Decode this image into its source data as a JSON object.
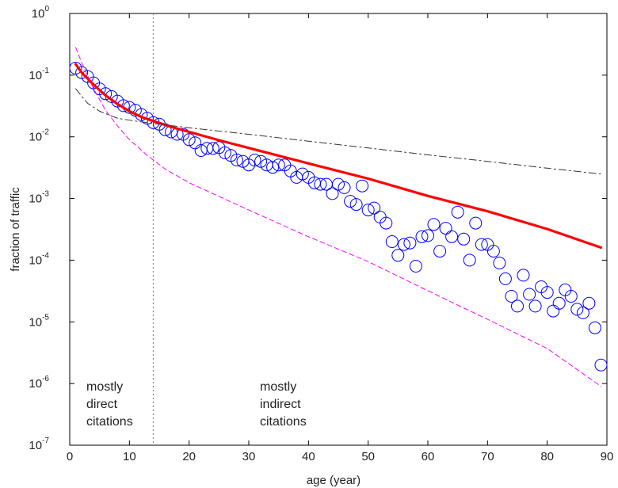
{
  "chart_data": {
    "type": "scatter",
    "title": "",
    "xlabel": "age (year)",
    "ylabel": "fraction of traffic",
    "xlim": [
      0,
      90
    ],
    "ylim": [
      1e-07,
      1
    ],
    "yscale": "log",
    "x_ticks": [
      "0",
      "10",
      "20",
      "30",
      "40",
      "50",
      "60",
      "70",
      "80",
      "90"
    ],
    "y_ticks": [
      {
        "base": "10",
        "exp": "0"
      },
      {
        "base": "10",
        "exp": "-1"
      },
      {
        "base": "10",
        "exp": "-2"
      },
      {
        "base": "10",
        "exp": "-3"
      },
      {
        "base": "10",
        "exp": "-4"
      },
      {
        "base": "10",
        "exp": "-5"
      },
      {
        "base": "10",
        "exp": "-6"
      },
      {
        "base": "10",
        "exp": "-7"
      }
    ],
    "grid": false,
    "legend": "none",
    "reference_line_x": 14,
    "annotations": [
      {
        "lines": [
          "mostly",
          "direct",
          "citations"
        ]
      },
      {
        "lines": [
          "mostly",
          "indirect",
          "citations"
        ]
      }
    ],
    "series": [
      {
        "style": "circles",
        "color": "#0000ff",
        "points": [
          [
            1,
            0.13
          ],
          [
            2,
            0.11
          ],
          [
            3,
            0.095
          ],
          [
            4,
            0.075
          ],
          [
            5,
            0.06
          ],
          [
            6,
            0.05
          ],
          [
            7,
            0.045
          ],
          [
            8,
            0.038
          ],
          [
            9,
            0.032
          ],
          [
            10,
            0.03
          ],
          [
            11,
            0.027
          ],
          [
            12,
            0.023
          ],
          [
            13,
            0.02
          ],
          [
            14,
            0.017
          ],
          [
            15,
            0.016
          ],
          [
            16,
            0.013
          ],
          [
            17,
            0.012
          ],
          [
            18,
            0.011
          ],
          [
            19,
            0.011
          ],
          [
            20,
            0.009
          ],
          [
            21,
            0.008
          ],
          [
            22,
            0.006
          ],
          [
            23,
            0.0065
          ],
          [
            24,
            0.0065
          ],
          [
            25,
            0.0067
          ],
          [
            26,
            0.0055
          ],
          [
            27,
            0.005
          ],
          [
            28,
            0.0042
          ],
          [
            29,
            0.004
          ],
          [
            30,
            0.0035
          ],
          [
            31,
            0.0042
          ],
          [
            32,
            0.004
          ],
          [
            33,
            0.0035
          ],
          [
            34,
            0.0032
          ],
          [
            35,
            0.0035
          ],
          [
            36,
            0.0035
          ],
          [
            37,
            0.0028
          ],
          [
            38,
            0.0022
          ],
          [
            39,
            0.0025
          ],
          [
            40,
            0.0022
          ],
          [
            41,
            0.0018
          ],
          [
            42,
            0.0017
          ],
          [
            43,
            0.0017
          ],
          [
            44,
            0.0012
          ],
          [
            45,
            0.0017
          ],
          [
            46,
            0.0015
          ],
          [
            47,
            0.0009
          ],
          [
            48,
            0.0008
          ],
          [
            49,
            0.0016
          ],
          [
            50,
            0.00065
          ],
          [
            51,
            0.0007
          ],
          [
            52,
            0.0005
          ],
          [
            53,
            0.0004
          ],
          [
            54,
            0.0002
          ],
          [
            55,
            0.00012
          ],
          [
            56,
            0.00018
          ],
          [
            57,
            0.00019
          ],
          [
            58,
            8e-05
          ],
          [
            59,
            0.00024
          ],
          [
            60,
            0.00025
          ],
          [
            61,
            0.00038
          ],
          [
            62,
            0.00014
          ],
          [
            63,
            0.00033
          ],
          [
            64,
            0.00024
          ],
          [
            65,
            0.0006
          ],
          [
            66,
            0.00022
          ],
          [
            67,
            0.0001
          ],
          [
            68,
            0.0004
          ],
          [
            69,
            0.00018
          ],
          [
            70,
            0.00018
          ],
          [
            71,
            0.00014
          ],
          [
            72,
            9e-05
          ],
          [
            73,
            5e-05
          ],
          [
            74,
            2.6e-05
          ],
          [
            75,
            1.8e-05
          ],
          [
            76,
            5.7e-05
          ],
          [
            77,
            2.8e-05
          ],
          [
            78,
            1.8e-05
          ],
          [
            79,
            3.7e-05
          ],
          [
            80,
            3e-05
          ],
          [
            81,
            1.5e-05
          ],
          [
            82,
            2e-05
          ],
          [
            83,
            3.3e-05
          ],
          [
            84,
            2.6e-05
          ],
          [
            85,
            1.6e-05
          ],
          [
            86,
            1.4e-05
          ],
          [
            87,
            2e-05
          ],
          [
            88,
            8e-06
          ],
          [
            89,
            2e-06
          ]
        ]
      },
      {
        "style": "solid",
        "color": "#ff0000",
        "points": [
          [
            1,
            0.15
          ],
          [
            2,
            0.11
          ],
          [
            4,
            0.07
          ],
          [
            6,
            0.047
          ],
          [
            8,
            0.034
          ],
          [
            10,
            0.026
          ],
          [
            12,
            0.021
          ],
          [
            14,
            0.018
          ],
          [
            17,
            0.0145
          ],
          [
            20,
            0.012
          ],
          [
            25,
            0.0088
          ],
          [
            30,
            0.0066
          ],
          [
            40,
            0.0037
          ],
          [
            50,
            0.0021
          ],
          [
            60,
            0.0011
          ],
          [
            70,
            0.00062
          ],
          [
            80,
            0.00032
          ],
          [
            89,
            0.00016
          ]
        ]
      },
      {
        "style": "dashdot",
        "color": "#333333",
        "points": [
          [
            1,
            0.06
          ],
          [
            3,
            0.035
          ],
          [
            5,
            0.026
          ],
          [
            8,
            0.02
          ],
          [
            11,
            0.018
          ],
          [
            14,
            0.0165
          ],
          [
            20,
            0.014
          ],
          [
            30,
            0.011
          ],
          [
            40,
            0.0085
          ],
          [
            50,
            0.0066
          ],
          [
            60,
            0.0051
          ],
          [
            70,
            0.004
          ],
          [
            80,
            0.0031
          ],
          [
            89,
            0.0025
          ]
        ]
      },
      {
        "style": "dashed",
        "color": "#ff00ff",
        "points": [
          [
            1,
            0.28
          ],
          [
            2,
            0.16
          ],
          [
            4,
            0.06
          ],
          [
            6,
            0.027
          ],
          [
            8,
            0.015
          ],
          [
            10,
            0.009
          ],
          [
            13,
            0.005
          ],
          [
            16,
            0.003
          ],
          [
            20,
            0.0018
          ],
          [
            30,
            0.00065
          ],
          [
            40,
            0.00024
          ],
          [
            50,
            9.5e-05
          ],
          [
            60,
            3.2e-05
          ],
          [
            70,
            1.1e-05
          ],
          [
            80,
            3.7e-06
          ],
          [
            89,
            9e-07
          ]
        ]
      }
    ]
  }
}
